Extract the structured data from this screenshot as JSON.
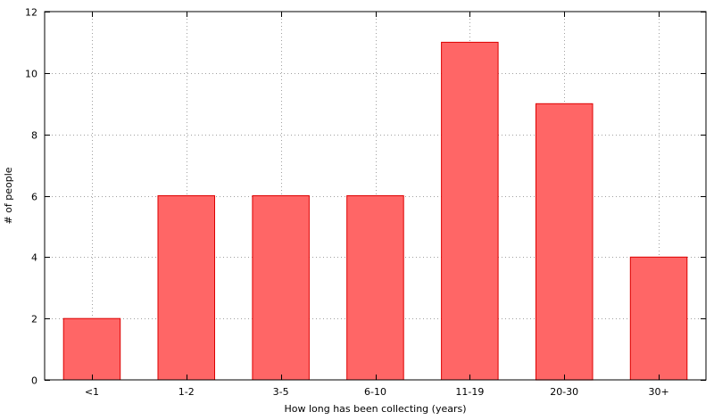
{
  "chart_data": {
    "type": "bar",
    "categories": [
      "<1",
      "1-2",
      "3-5",
      "6-10",
      "11-19",
      "20-30",
      "30+"
    ],
    "values": [
      2,
      6,
      6,
      6,
      11,
      9,
      4
    ],
    "xlabel": "How long has been collecting (years)",
    "ylabel": "# of people",
    "ylim": [
      0,
      12
    ],
    "yticks": [
      0,
      2,
      4,
      6,
      8,
      10,
      12
    ],
    "grid": true,
    "colors": {
      "bar_fill": "#ff6666",
      "bar_stroke": "#dd0000",
      "grid": "#a0a0a0"
    }
  }
}
